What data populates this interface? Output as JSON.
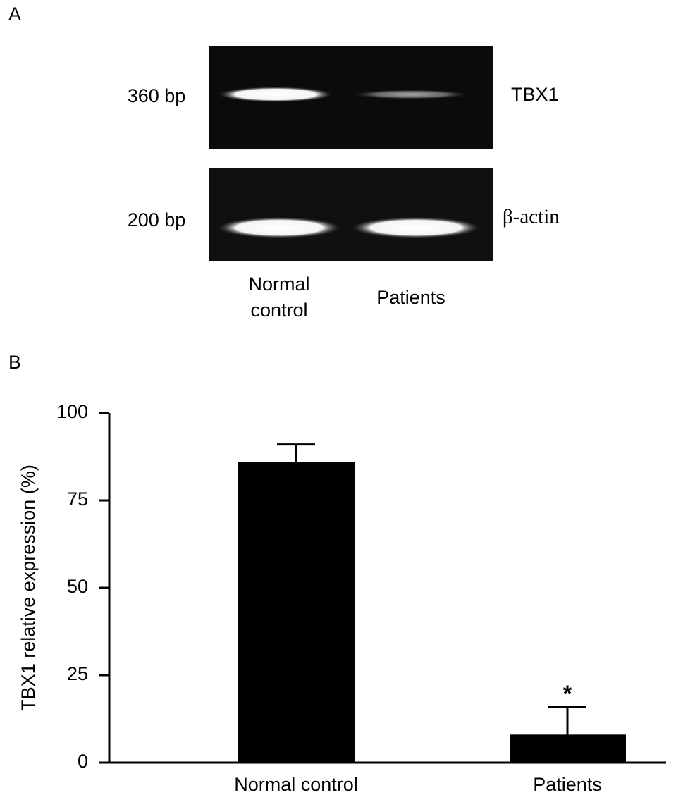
{
  "panels": {
    "a": "A",
    "b": "B"
  },
  "gel": {
    "rows": [
      {
        "size": "360 bp",
        "gene": "TBX1"
      },
      {
        "size": "200 bp",
        "gene": "β-actin"
      }
    ],
    "lanes": [
      [
        "Normal",
        "control"
      ],
      [
        "Patients"
      ]
    ]
  },
  "chart_data": {
    "type": "bar",
    "ylabel": "TBX1 relative expression (%)",
    "categories": [
      "Normal control",
      "Patients"
    ],
    "values": [
      86,
      8
    ],
    "errors": [
      5,
      8
    ],
    "value_annotations": [
      null,
      "*"
    ],
    "color": "#000000",
    "ylim": [
      0,
      100
    ],
    "yticks": [
      0,
      25,
      50,
      75,
      100
    ]
  }
}
